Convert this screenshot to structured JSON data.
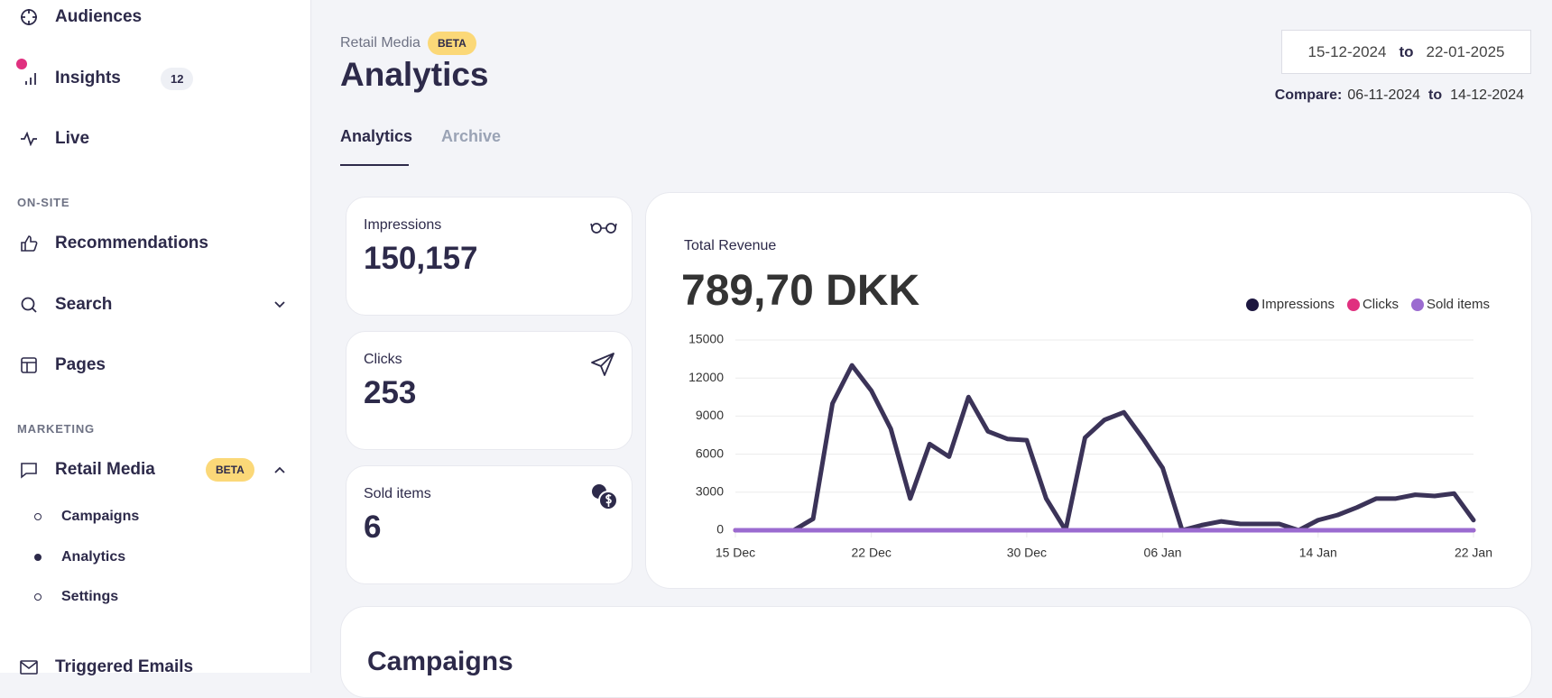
{
  "sidebar": {
    "top": [
      {
        "label": "Audiences"
      },
      {
        "label": "Insights",
        "badge": 12
      },
      {
        "label": "Live"
      }
    ],
    "sections": [
      {
        "title": "ON-SITE",
        "items": [
          {
            "label": "Recommendations"
          },
          {
            "label": "Search"
          },
          {
            "label": "Pages"
          }
        ]
      },
      {
        "title": "MARKETING",
        "items": [
          {
            "label": "Retail Media",
            "badge": "BETA"
          }
        ],
        "subitems": [
          {
            "label": "Campaigns"
          },
          {
            "label": "Analytics"
          },
          {
            "label": "Settings"
          }
        ],
        "more": [
          {
            "label": "Triggered Emails"
          }
        ]
      }
    ]
  },
  "header": {
    "breadcrumb": "Retail Media",
    "badge": "BETA",
    "title": "Analytics"
  },
  "date_range": {
    "from": "15-12-2024",
    "joiner": "to",
    "to": "22-01-2025",
    "compare_label": "Compare:",
    "compare_from": "06-11-2024",
    "compare_joiner": "to",
    "compare_to": "14-12-2024"
  },
  "tabs": [
    {
      "label": "Analytics"
    },
    {
      "label": "Archive"
    }
  ],
  "kpis": [
    {
      "label": "Impressions",
      "value": "150,157"
    },
    {
      "label": "Clicks",
      "value": "253"
    },
    {
      "label": "Sold items",
      "value": "6"
    }
  ],
  "revenue_card": {
    "label": "Total Revenue",
    "value": "789,70 DKK"
  },
  "campaigns_card": {
    "title": "Campaigns"
  },
  "chart_data": {
    "type": "line",
    "categories": [
      "15 Dec",
      null,
      null,
      null,
      null,
      null,
      null,
      "22 Dec",
      null,
      null,
      null,
      null,
      null,
      null,
      null,
      "30 Dec",
      null,
      null,
      null,
      null,
      null,
      null,
      "06 Jan",
      null,
      null,
      null,
      null,
      null,
      null,
      null,
      "14 Jan",
      null,
      null,
      null,
      null,
      null,
      null,
      null,
      "22 Jan"
    ],
    "series": [
      {
        "name": "Impressions",
        "color": "#3b3358",
        "legend_color": "#1d1740",
        "values": [
          0,
          0,
          0,
          0,
          900,
          10000,
          13000,
          11000,
          8000,
          2500,
          6800,
          5800,
          10500,
          7800,
          7200,
          7100,
          2500,
          0,
          7300,
          8700,
          9300,
          7200,
          4900,
          0,
          400,
          700,
          500,
          500,
          500,
          0,
          800,
          1200,
          1800,
          2500,
          2500,
          2800,
          2700,
          2900,
          800
        ]
      },
      {
        "name": "Clicks",
        "color": "#e0307f",
        "legend_color": "#e0307f",
        "values": [
          0,
          0,
          0,
          0,
          0,
          0,
          0,
          0,
          0,
          0,
          0,
          0,
          0,
          0,
          0,
          0,
          0,
          0,
          0,
          0,
          0,
          0,
          0,
          0,
          0,
          0,
          0,
          0,
          0,
          0,
          0,
          0,
          0,
          0,
          0,
          0,
          0,
          0,
          0
        ]
      },
      {
        "name": "Sold items",
        "color": "#9b6bd0",
        "legend_color": "#9b6bd0",
        "values": [
          0,
          0,
          0,
          0,
          0,
          0,
          0,
          0,
          0,
          0,
          0,
          0,
          0,
          0,
          0,
          0,
          0,
          0,
          0,
          0,
          0,
          0,
          0,
          0,
          0,
          0,
          0,
          0,
          0,
          0,
          0,
          0,
          0,
          0,
          0,
          0,
          0,
          0,
          0
        ]
      }
    ],
    "ylim": [
      0,
      15000
    ],
    "yticks": [
      0,
      3000,
      6000,
      9000,
      12000,
      15000
    ],
    "grid": true
  }
}
